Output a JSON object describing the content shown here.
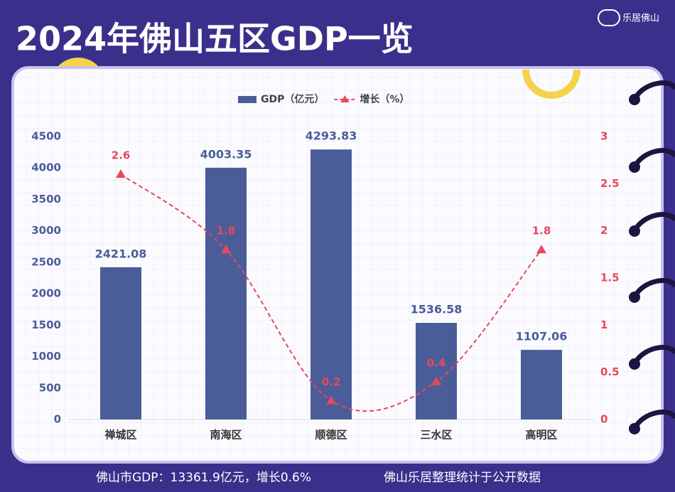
{
  "brand": "乐居佛山",
  "chart_data": {
    "type": "bar",
    "title": "2024年佛山五区GDP一览",
    "categories": [
      "禅城区",
      "南海区",
      "顺德区",
      "三水区",
      "高明区"
    ],
    "series": [
      {
        "name": "GDP（亿元）",
        "type": "bar",
        "color": "#4a5d99",
        "values": [
          2421.08,
          4003.35,
          4293.83,
          1536.58,
          1107.06
        ]
      },
      {
        "name": "增长（%）",
        "type": "line",
        "axis": "y2",
        "color": "#e8485c",
        "values": [
          2.6,
          1.8,
          0.2,
          0.4,
          1.8
        ]
      }
    ],
    "ylim": [
      0,
      4500
    ],
    "yticks": [
      0,
      500,
      1000,
      1500,
      2000,
      2500,
      3000,
      3500,
      4000,
      4500
    ],
    "y2lim": [
      0,
      3
    ],
    "y2ticks": [
      0,
      0.5,
      1,
      1.5,
      2,
      2.5,
      3
    ],
    "legend": "top"
  },
  "footer": {
    "summary": "佛山市GDP：13361.9亿元，增长0.6%",
    "source": "佛山乐居整理统计于公开数据"
  }
}
